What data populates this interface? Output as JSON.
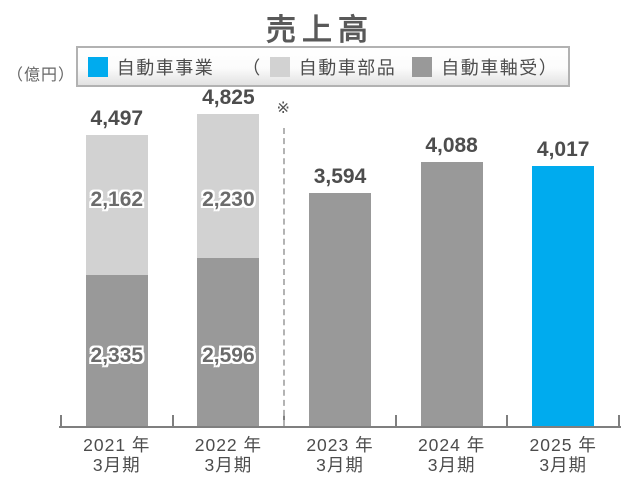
{
  "page": {
    "title": "売上高",
    "unit_label": "（億円）",
    "note_mark": "※"
  },
  "legend": {
    "items": [
      {
        "swatch_name": "blue-swatch",
        "color": "#00abee",
        "prefix": "",
        "label": "自動車事業",
        "suffix": ""
      },
      {
        "swatch_name": "light-gray-swatch",
        "color": "#d2d2d2",
        "prefix": "（",
        "label": "自動車部品",
        "suffix": ""
      },
      {
        "swatch_name": "dark-gray-swatch",
        "color": "#999999",
        "prefix": "",
        "label": "自動車軸受",
        "suffix": "）"
      }
    ]
  },
  "chart_data": {
    "type": "bar",
    "stacked": true,
    "title": "売上高",
    "ylabel": "（億円）",
    "unit": "億円",
    "ylim": [
      0,
      5000
    ],
    "grid": false,
    "legend_position": "top",
    "categories": [
      {
        "line1": "2021 年",
        "line2": "3月期"
      },
      {
        "line1": "2022 年",
        "line2": "3月期"
      },
      {
        "line1": "2023 年",
        "line2": "3月期"
      },
      {
        "line1": "2024 年",
        "line2": "3月期"
      },
      {
        "line1": "2025 年",
        "line2": "3月期"
      }
    ],
    "divider_after_category_index": 1,
    "divider_note": "※",
    "bars": [
      {
        "total": 4497,
        "total_label": "4,497",
        "segments": [
          {
            "name": "自動車軸受",
            "value": 2335,
            "label": "2,335",
            "color": "#999999"
          },
          {
            "name": "自動車部品",
            "value": 2162,
            "label": "2,162",
            "color": "#d2d2d2"
          }
        ]
      },
      {
        "total": 4825,
        "total_label": "4,825",
        "segments": [
          {
            "name": "自動車軸受",
            "value": 2596,
            "label": "2,596",
            "color": "#999999"
          },
          {
            "name": "自動車部品",
            "value": 2230,
            "label": "2,230",
            "color": "#d2d2d2"
          }
        ]
      },
      {
        "total": 3594,
        "total_label": "3,594",
        "segments": [
          {
            "name": "自動車事業",
            "value": 3594,
            "label": "",
            "color": "#999999"
          }
        ]
      },
      {
        "total": 4088,
        "total_label": "4,088",
        "segments": [
          {
            "name": "自動車事業",
            "value": 4088,
            "label": "",
            "color": "#999999"
          }
        ]
      },
      {
        "total": 4017,
        "total_label": "4,017",
        "segments": [
          {
            "name": "自動車事業",
            "value": 4017,
            "label": "",
            "color": "#00abee"
          }
        ]
      }
    ]
  },
  "colors": {
    "accent_blue": "#00abee",
    "light_gray": "#d2d2d2",
    "dark_gray": "#999999",
    "axis": "#7f7f7f",
    "text": "#4d4d4d"
  }
}
